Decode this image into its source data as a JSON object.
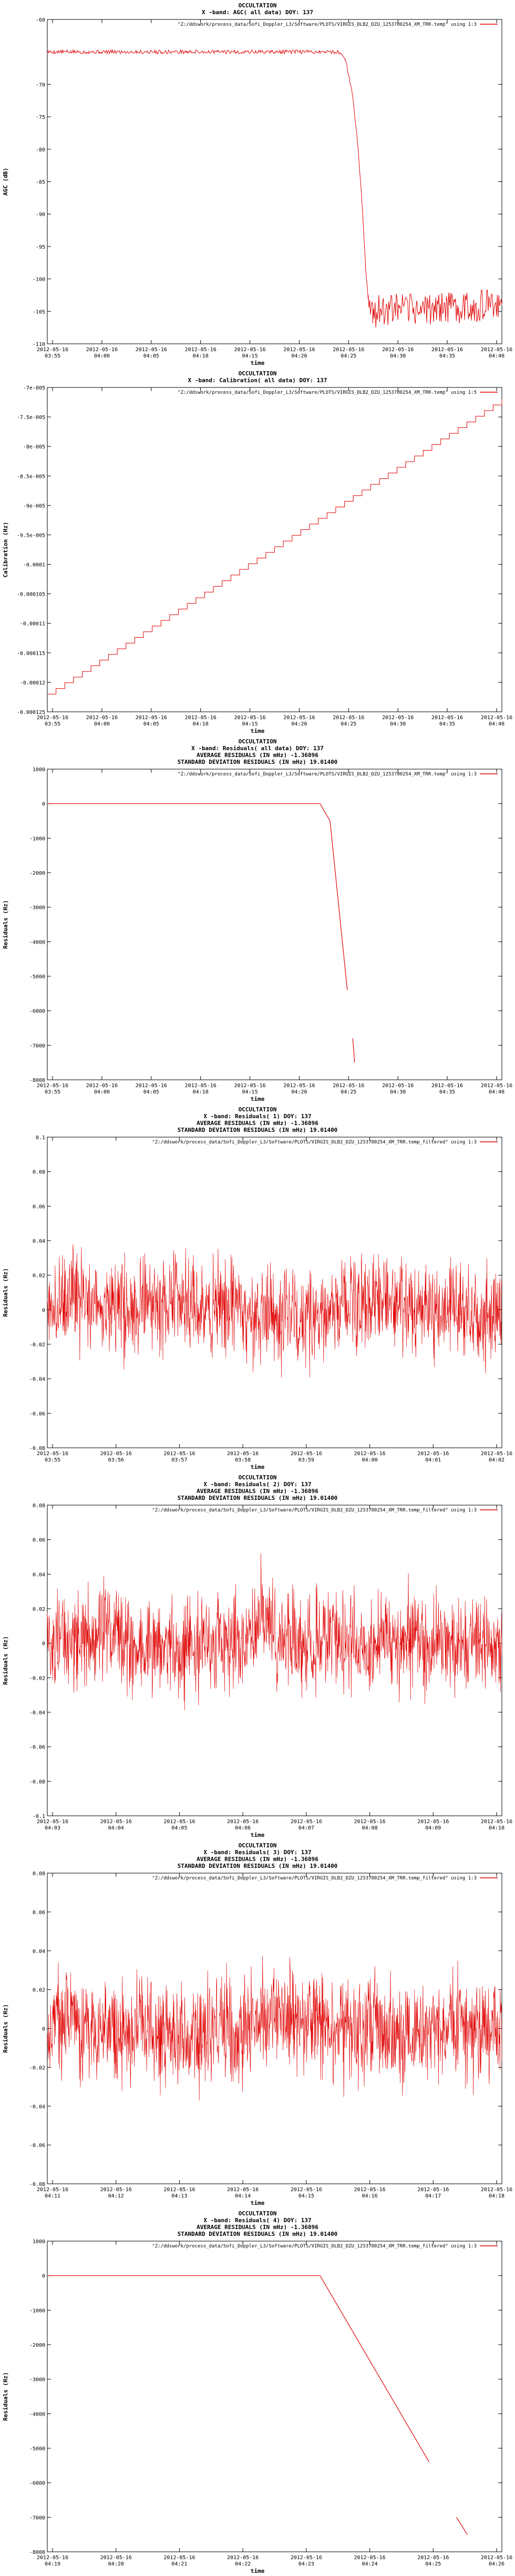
{
  "colors": {
    "series": "#e00000",
    "axis": "#000000",
    "background": "#ffffff"
  },
  "chart_data": [
    {
      "type": "line",
      "title_lines": [
        "OCCULTATION",
        "X -band: AGC( all data) DOY: 137"
      ],
      "xlabel": "time",
      "ylabel": "AGC (dB)",
      "yticks": [
        "-60",
        "-70",
        "-75",
        "-80",
        "-85",
        "-90",
        "-95",
        "-100",
        "-105",
        "-110"
      ],
      "ylim": [
        -110,
        -60
      ],
      "xticks": [
        [
          "2012-05-16",
          "03:55"
        ],
        [
          "2012-05-16",
          "04:00"
        ],
        [
          "2012-05-16",
          "04:05"
        ],
        [
          "2012-05-16",
          "04:10"
        ],
        [
          "2012-05-16",
          "04:15"
        ],
        [
          "2012-05-16",
          "04:20"
        ],
        [
          "2012-05-16",
          "04:25"
        ],
        [
          "2012-05-16",
          "04:30"
        ],
        [
          "2012-05-16",
          "04:35"
        ],
        [
          "2012-05-16",
          "04:40"
        ]
      ],
      "legend": "\"Z:/ddswork/process_data/Sofi_Doppler_L3/Software/PLOTS/VIRGIS_DLB2_DZU_1253780254_XM_TRR.temp\" using 1:3",
      "grid": false,
      "series": [
        {
          "kind": "agc",
          "points": [
            [
              0,
              -65
            ],
            [
              0.64,
              -65
            ],
            [
              0.656,
              -66
            ],
            [
              0.672,
              -72
            ],
            [
              0.684,
              -80
            ],
            [
              0.694,
              -90
            ],
            [
              0.7,
              -98
            ],
            [
              0.706,
              -103
            ],
            [
              0.716,
              -105
            ],
            [
              1,
              -104
            ]
          ]
        }
      ]
    },
    {
      "type": "line",
      "title_lines": [
        "OCCULTATION",
        "X -band: Calibration( all data) DOY: 137"
      ],
      "xlabel": "time",
      "ylabel": "Calibration (Hz)",
      "yticks": [
        "-7e-005",
        "-7.5e-005",
        "-8e-005",
        "-8.5e-005",
        "-9e-005",
        "-9.5e-005",
        "-0.0001",
        "-0.000105",
        "-0.00011",
        "-0.000115",
        "-0.00012",
        "-0.000125"
      ],
      "ylim": [
        -0.000125,
        -7e-05
      ],
      "xticks": [
        [
          "2012-05-16",
          "03:55"
        ],
        [
          "2012-05-16",
          "04:00"
        ],
        [
          "2012-05-16",
          "04:05"
        ],
        [
          "2012-05-16",
          "04:10"
        ],
        [
          "2012-05-16",
          "04:15"
        ],
        [
          "2012-05-16",
          "04:20"
        ],
        [
          "2012-05-16",
          "04:25"
        ],
        [
          "2012-05-16",
          "04:30"
        ],
        [
          "2012-05-16",
          "04:35"
        ],
        [
          "2012-05-16",
          "04:40"
        ]
      ],
      "legend": "\"Z:/ddswork/process_data/Sofi_Doppler_L3/Software/PLOTS/VIRGIS_DLB2_DZU_1253780254_XM_TRR.temp\" using 1:5",
      "grid": false,
      "series": [
        {
          "kind": "staircase",
          "y_start": -0.000122,
          "y_end": -7.2e-05,
          "steps": 52
        }
      ]
    },
    {
      "type": "line",
      "title_lines": [
        "OCCULTATION",
        "X -band: Residuals( all data) DOY: 137",
        "AVERAGE RESIDUALS (IN mHz) -1.36896",
        "STANDARD DEVIATION RESIDUALS (IN mHz) 19.01400"
      ],
      "xlabel": "time",
      "ylabel": "Residuals (Hz)",
      "yticks": [
        "1000",
        "0",
        "-1000",
        "-2000",
        "-3000",
        "-4000",
        "-5000",
        "-6000",
        "-7000",
        "-8000"
      ],
      "ylim": [
        -8000,
        1000
      ],
      "xticks": [
        [
          "2012-05-16",
          "03:55"
        ],
        [
          "2012-05-16",
          "04:00"
        ],
        [
          "2012-05-16",
          "04:05"
        ],
        [
          "2012-05-16",
          "04:10"
        ],
        [
          "2012-05-16",
          "04:15"
        ],
        [
          "2012-05-16",
          "04:20"
        ],
        [
          "2012-05-16",
          "04:25"
        ],
        [
          "2012-05-16",
          "04:30"
        ],
        [
          "2012-05-16",
          "04:35"
        ],
        [
          "2012-05-16",
          "04:40"
        ]
      ],
      "legend": "\"Z:/ddswork/process_data/Sofi_Doppler_L3/Software/PLOTS/VIRGIS_DLB2_DZU_1253780254_XM_TRR.temp\" using 1:3",
      "grid": false,
      "series": [
        {
          "kind": "residual-drop",
          "points": [
            [
              0,
              0
            ],
            [
              0.6,
              0
            ],
            [
              0.622,
              -500
            ],
            [
              0.66,
              -5400
            ]
          ],
          "tail": [
            [
              0.672,
              -6800
            ],
            [
              0.676,
              -7500
            ]
          ]
        }
      ]
    },
    {
      "type": "line",
      "title_lines": [
        "OCCULTATION",
        "X -band: Residuals( 1) DOY: 137",
        "AVERAGE RESIDUALS (IN mHz) -1.36896",
        "STANDARD DEVIATION RESIDUALS (IN mHz) 19.01400"
      ],
      "xlabel": "time",
      "ylabel": "Residuals (Hz)",
      "yticks": [
        "0.1",
        "0.08",
        "0.06",
        "0.04",
        "0.02",
        "0",
        "-0.02",
        "-0.04",
        "-0.06",
        "-0.08"
      ],
      "ylim": [
        -0.08,
        0.1
      ],
      "xticks": [
        [
          "2012-05-16",
          "03:55"
        ],
        [
          "2012-05-16",
          "03:56"
        ],
        [
          "2012-05-16",
          "03:57"
        ],
        [
          "2012-05-16",
          "03:58"
        ],
        [
          "2012-05-16",
          "03:59"
        ],
        [
          "2012-05-16",
          "04:00"
        ],
        [
          "2012-05-16",
          "04:01"
        ],
        [
          "2012-05-16",
          "04:02"
        ]
      ],
      "legend": "\"Z:/ddswork/process_data/Sofi_Doppler_L3/Software/PLOTS/VIRGIS_DLB2_DZU_1253780254_XM_TRR.temp_filtered\" using 1:3",
      "grid": false,
      "series": [
        {
          "kind": "noise",
          "center": 0.0,
          "amplitude": 0.022,
          "seed": 11
        }
      ]
    },
    {
      "type": "line",
      "title_lines": [
        "OCCULTATION",
        "X -band: Residuals( 2) DOY: 137",
        "AVERAGE RESIDUALS (IN mHz) -1.36896",
        "STANDARD DEVIATION RESIDUALS (IN mHz) 19.01400"
      ],
      "xlabel": "time",
      "ylabel": "Residuals (Hz)",
      "yticks": [
        "0.08",
        "0.06",
        "0.04",
        "0.02",
        "0",
        "-0.02",
        "-0.04",
        "-0.06",
        "-0.08",
        "-0.1"
      ],
      "ylim": [
        -0.1,
        0.08
      ],
      "xticks": [
        [
          "2012-05-16",
          "04:03"
        ],
        [
          "2012-05-16",
          "04:04"
        ],
        [
          "2012-05-16",
          "04:05"
        ],
        [
          "2012-05-16",
          "04:06"
        ],
        [
          "2012-05-16",
          "04:07"
        ],
        [
          "2012-05-16",
          "04:08"
        ],
        [
          "2012-05-16",
          "04:09"
        ],
        [
          "2012-05-16",
          "04:10"
        ]
      ],
      "legend": "\"Z:/ddswork/process_data/Sofi_Doppler_L3/Software/PLOTS/VIRGIS_DLB2_DZU_1253780254_XM_TRR.temp_filtered\" using 1:3",
      "grid": false,
      "series": [
        {
          "kind": "noise",
          "center": 0.0,
          "amplitude": 0.022,
          "seed": 23
        }
      ]
    },
    {
      "type": "line",
      "title_lines": [
        "OCCULTATION",
        "X -band: Residuals( 3) DOY: 137",
        "AVERAGE RESIDUALS (IN mHz) -1.36896",
        "STANDARD DEVIATION RESIDUALS (IN mHz) 19.01400"
      ],
      "xlabel": "time",
      "ylabel": "Residuals (Hz)",
      "yticks": [
        "0.08",
        "0.06",
        "0.04",
        "0.02",
        "0",
        "-0.02",
        "-0.04",
        "-0.06",
        "-0.08"
      ],
      "ylim": [
        -0.08,
        0.08
      ],
      "xticks": [
        [
          "2012-05-16",
          "04:11"
        ],
        [
          "2012-05-16",
          "04:12"
        ],
        [
          "2012-05-16",
          "04:13"
        ],
        [
          "2012-05-16",
          "04:14"
        ],
        [
          "2012-05-16",
          "04:15"
        ],
        [
          "2012-05-16",
          "04:16"
        ],
        [
          "2012-05-16",
          "04:17"
        ],
        [
          "2012-05-16",
          "04:18"
        ]
      ],
      "legend": "\"Z:/ddswork/process_data/Sofi_Doppler_L3/Software/PLOTS/VIRGIS_DLB2_DZU_1253780254_XM_TRR.temp_filtered\" using 1:3",
      "grid": false,
      "series": [
        {
          "kind": "noise",
          "center": 0.0,
          "amplitude": 0.022,
          "seed": 37
        }
      ]
    },
    {
      "type": "line",
      "title_lines": [
        "OCCULTATION",
        "X -band: Residuals( 4) DOY: 137",
        "AVERAGE RESIDUALS (IN mHz) -1.36896",
        "STANDARD DEVIATION RESIDUALS (IN mHz) 19.01400"
      ],
      "xlabel": "time",
      "ylabel": "Residuals (Hz)",
      "yticks": [
        "1000",
        "0",
        "-1000",
        "-2000",
        "-3000",
        "-4000",
        "-5000",
        "-6000",
        "-7000",
        "-8000"
      ],
      "ylim": [
        -8000,
        1000
      ],
      "xticks": [
        [
          "2012-05-16",
          "04:19"
        ],
        [
          "2012-05-16",
          "04:20"
        ],
        [
          "2012-05-16",
          "04:21"
        ],
        [
          "2012-05-16",
          "04:22"
        ],
        [
          "2012-05-16",
          "04:23"
        ],
        [
          "2012-05-16",
          "04:24"
        ],
        [
          "2012-05-16",
          "04:25"
        ],
        [
          "2012-05-16",
          "04:26"
        ]
      ],
      "legend": "\"Z:/ddswork/process_data/Sofi_Doppler_L3/Software/PLOTS/VIRGIS_DLB2_DZU_1253780254_XM_TRR.temp_filtered\" using 1:3",
      "grid": false,
      "series": [
        {
          "kind": "residual-drop",
          "points": [
            [
              0,
              0
            ],
            [
              0.6,
              0
            ],
            [
              0.84,
              -5400
            ]
          ],
          "tail": [
            [
              0.9,
              -7000
            ],
            [
              0.924,
              -7500
            ]
          ]
        }
      ]
    }
  ]
}
